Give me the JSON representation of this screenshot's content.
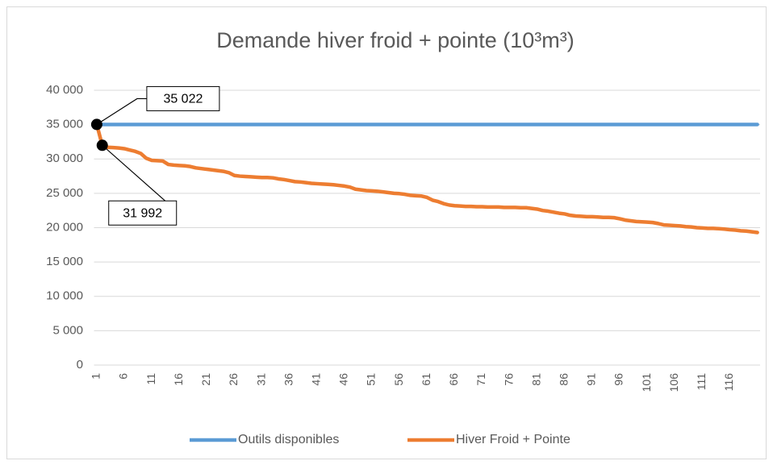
{
  "chart_data": {
    "type": "line",
    "title": "Demande hiver froid + pointe (10³m³)",
    "categories": [
      "1",
      null,
      null,
      null,
      null,
      "6",
      null,
      null,
      null,
      null,
      "11",
      null,
      null,
      null,
      null,
      "16",
      null,
      null,
      null,
      null,
      "21",
      null,
      null,
      null,
      null,
      "26",
      null,
      null,
      null,
      null,
      "31",
      null,
      null,
      null,
      null,
      "36",
      null,
      null,
      null,
      null,
      "41",
      null,
      null,
      null,
      null,
      "46",
      null,
      null,
      null,
      null,
      "51",
      null,
      null,
      null,
      null,
      "56",
      null,
      null,
      null,
      null,
      "61",
      null,
      null,
      null,
      null,
      "66",
      null,
      null,
      null,
      null,
      "71",
      null,
      null,
      null,
      null,
      "76",
      null,
      null,
      null,
      null,
      "81",
      null,
      null,
      null,
      null,
      "86",
      null,
      null,
      null,
      null,
      "91",
      null,
      null,
      null,
      null,
      "96",
      null,
      null,
      null,
      null,
      "101",
      null,
      null,
      null,
      null,
      "106",
      null,
      null,
      null,
      null,
      "111",
      null,
      null,
      null,
      null,
      "116",
      null,
      null,
      null,
      null,
      null
    ],
    "series": [
      {
        "name": "Outils disponibles",
        "color": "#5b9bd5",
        "values": [
          35022,
          35022,
          35022,
          35022,
          35022,
          35022,
          35022,
          35022,
          35022,
          35022,
          35022,
          35022,
          35022,
          35022,
          35022,
          35022,
          35022,
          35022,
          35022,
          35022,
          35022,
          35022,
          35022,
          35022,
          35022,
          35022,
          35022,
          35022,
          35022,
          35022,
          35022,
          35022,
          35022,
          35022,
          35022,
          35022,
          35022,
          35022,
          35022,
          35022,
          35022,
          35022,
          35022,
          35022,
          35022,
          35022,
          35022,
          35022,
          35022,
          35022,
          35022,
          35022,
          35022,
          35022,
          35022,
          35022,
          35022,
          35022,
          35022,
          35022,
          35022,
          35022,
          35022,
          35022,
          35022,
          35022,
          35022,
          35022,
          35022,
          35022,
          35022,
          35022,
          35022,
          35022,
          35022,
          35022,
          35022,
          35022,
          35022,
          35022,
          35022,
          35022,
          35022,
          35022,
          35022,
          35022,
          35022,
          35022,
          35022,
          35022,
          35022,
          35022,
          35022,
          35022,
          35022,
          35022,
          35022,
          35022,
          35022,
          35022,
          35022,
          35022,
          35022,
          35022,
          35022,
          35022,
          35022,
          35022,
          35022,
          35022,
          35022,
          35022,
          35022,
          35022,
          35022,
          35022,
          35022,
          35022,
          35022,
          35022,
          35022
        ]
      },
      {
        "name": "Hiver Froid + Pointe",
        "color": "#ed7d31",
        "values": [
          35022,
          31992,
          31700,
          31650,
          31600,
          31500,
          31300,
          31100,
          30800,
          30100,
          29800,
          29750,
          29700,
          29200,
          29100,
          29050,
          29000,
          28900,
          28700,
          28600,
          28500,
          28400,
          28300,
          28200,
          28000,
          27600,
          27500,
          27450,
          27400,
          27350,
          27300,
          27300,
          27250,
          27100,
          27000,
          26850,
          26700,
          26650,
          26550,
          26450,
          26400,
          26350,
          26300,
          26250,
          26150,
          26050,
          25900,
          25600,
          25500,
          25400,
          25350,
          25300,
          25200,
          25100,
          25000,
          24950,
          24850,
          24700,
          24650,
          24600,
          24400,
          24000,
          23800,
          23500,
          23300,
          23200,
          23150,
          23100,
          23100,
          23050,
          23050,
          23000,
          23000,
          23000,
          22950,
          22950,
          22950,
          22900,
          22900,
          22800,
          22700,
          22500,
          22400,
          22250,
          22100,
          22000,
          21800,
          21700,
          21650,
          21600,
          21600,
          21550,
          21500,
          21500,
          21450,
          21300,
          21100,
          21000,
          20900,
          20850,
          20800,
          20750,
          20600,
          20400,
          20350,
          20300,
          20250,
          20150,
          20100,
          20000,
          19950,
          19900,
          19900,
          19850,
          19800,
          19700,
          19650,
          19550,
          19500,
          19400,
          19300
        ],
        "value_labels": [
          "35 022",
          "31 992",
          null,
          null,
          null,
          null,
          null,
          null,
          null,
          null,
          null,
          null,
          null,
          null,
          null,
          null,
          null,
          null,
          null,
          null,
          null,
          null,
          null,
          null,
          null,
          null,
          null,
          null,
          null,
          null,
          null,
          null,
          null,
          null,
          null,
          null,
          null,
          null,
          null,
          null,
          null,
          null,
          null,
          null,
          null,
          null,
          null,
          null,
          null,
          null,
          null,
          null,
          null,
          null,
          null,
          null,
          null,
          null,
          null,
          null,
          null,
          null,
          null,
          null,
          null,
          null,
          null,
          null,
          null,
          null,
          null,
          null,
          null,
          null,
          null,
          null,
          null,
          null,
          null,
          null,
          null,
          null,
          null,
          null,
          null,
          null,
          null,
          null,
          null,
          null,
          null,
          null,
          null,
          null,
          null,
          null,
          null,
          null,
          null,
          null,
          null,
          null,
          null,
          null,
          null,
          null,
          null,
          null,
          null,
          null,
          null,
          null,
          null,
          null,
          null,
          null,
          null,
          null,
          null,
          null,
          null
        ]
      }
    ],
    "ylim": [
      0,
      40000
    ],
    "yticks": [
      0,
      {
        "value": 5000,
        "label": "5 000"
      },
      {
        "value": 10000,
        "label": "10 000"
      },
      {
        "value": 15000,
        "label": "15 000"
      },
      {
        "value": 20000,
        "label": "20 000"
      },
      {
        "value": 25000,
        "label": "25 000"
      },
      {
        "value": 30000,
        "label": "30 000"
      },
      {
        "value": 35000,
        "label": "35 000"
      },
      {
        "value": 40000,
        "label": "40 000"
      }
    ],
    "grid": true,
    "legend": "bottom"
  }
}
